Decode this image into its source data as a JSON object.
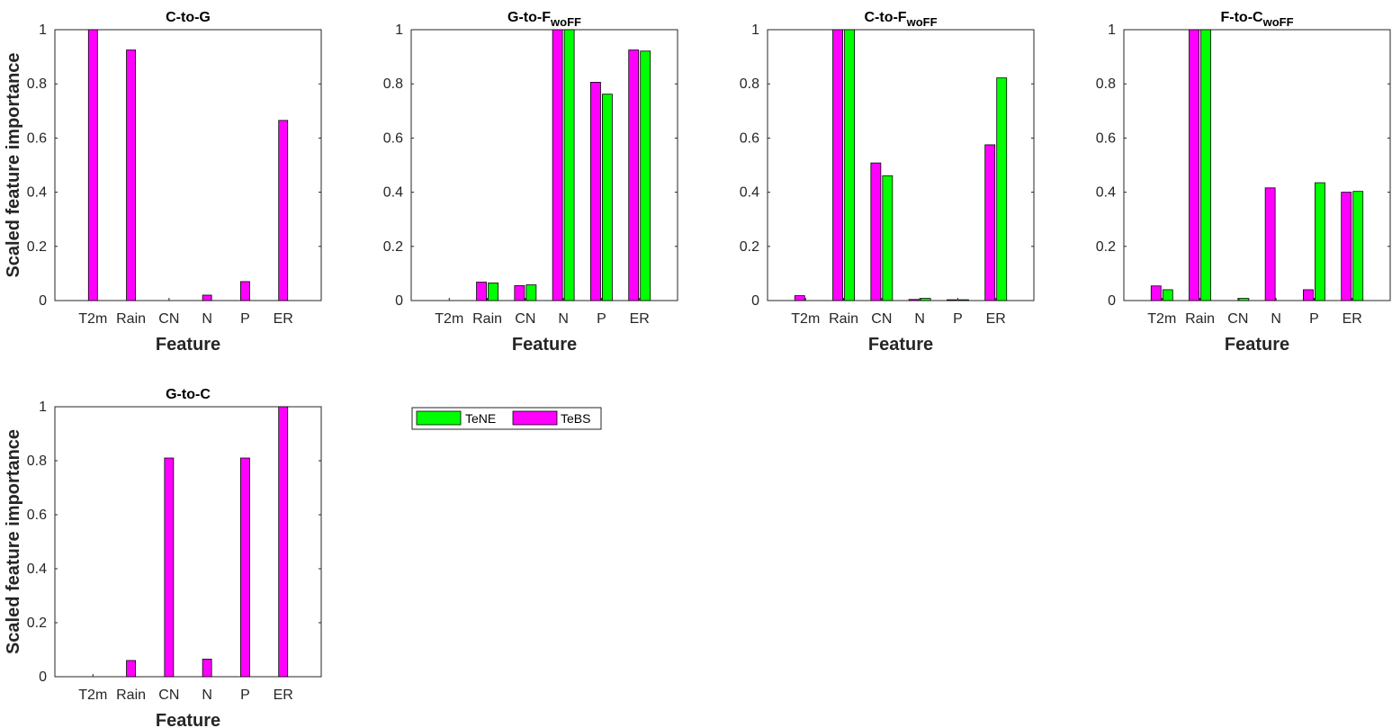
{
  "legend": [
    {
      "name": "TeNE",
      "color": "#00ff00"
    },
    {
      "name": "TeBS",
      "color": "#ff00ff"
    }
  ],
  "chart_data": [
    {
      "type": "bar",
      "title": "C-to-G",
      "title_sub": "",
      "xlabel": "Feature",
      "ylabel": "Scaled feature importance",
      "categories": [
        "T2m",
        "Rain",
        "CN",
        "N",
        "P",
        "ER"
      ],
      "yticks": [
        "0",
        "0.2",
        "0.4",
        "0.6",
        "0.8",
        "1"
      ],
      "ylim": [
        0,
        1
      ],
      "series": [
        {
          "name": "TeBS",
          "color": "#ff00ff",
          "values": [
            1.0,
            0.925,
            0.0,
            0.02,
            0.07,
            0.665
          ]
        }
      ]
    },
    {
      "type": "bar",
      "title": "G-to-F",
      "title_sub": "woFF",
      "xlabel": "Feature",
      "ylabel": "",
      "categories": [
        "T2m",
        "Rain",
        "CN",
        "N",
        "P",
        "ER"
      ],
      "yticks": [
        "0",
        "0.2",
        "0.4",
        "0.6",
        "0.8",
        "1"
      ],
      "ylim": [
        0,
        1
      ],
      "series": [
        {
          "name": "TeBS",
          "color": "#ff00ff",
          "values": [
            0.0,
            0.068,
            0.055,
            1.0,
            0.806,
            0.925
          ]
        },
        {
          "name": "TeNE",
          "color": "#00ff00",
          "values": [
            0.0,
            0.065,
            0.058,
            1.0,
            0.762,
            0.921
          ]
        }
      ]
    },
    {
      "type": "bar",
      "title": "C-to-F",
      "title_sub": "woFF",
      "xlabel": "Feature",
      "ylabel": "",
      "categories": [
        "T2m",
        "Rain",
        "CN",
        "N",
        "P",
        "ER"
      ],
      "yticks": [
        "0",
        "0.2",
        "0.4",
        "0.6",
        "0.8",
        "1"
      ],
      "ylim": [
        0,
        1
      ],
      "series": [
        {
          "name": "TeBS",
          "color": "#ff00ff",
          "values": [
            0.018,
            1.0,
            0.508,
            0.004,
            0.003,
            0.575
          ]
        },
        {
          "name": "TeNE",
          "color": "#00ff00",
          "values": [
            0.0,
            1.0,
            0.461,
            0.008,
            0.003,
            0.822
          ]
        }
      ]
    },
    {
      "type": "bar",
      "title": "F-to-C",
      "title_sub": "woFF",
      "xlabel": "Feature",
      "ylabel": "",
      "categories": [
        "T2m",
        "Rain",
        "CN",
        "N",
        "P",
        "ER"
      ],
      "yticks": [
        "0",
        "0.2",
        "0.4",
        "0.6",
        "0.8",
        "1"
      ],
      "ylim": [
        0,
        1
      ],
      "series": [
        {
          "name": "TeBS",
          "color": "#ff00ff",
          "values": [
            0.054,
            1.0,
            0.0,
            0.416,
            0.04,
            0.4
          ]
        },
        {
          "name": "TeNE",
          "color": "#00ff00",
          "values": [
            0.04,
            1.0,
            0.008,
            0.0,
            0.435,
            0.403
          ]
        }
      ]
    },
    {
      "type": "bar",
      "title": "G-to-C",
      "title_sub": "",
      "xlabel": "Feature",
      "ylabel": "Scaled feature importance",
      "categories": [
        "T2m",
        "Rain",
        "CN",
        "N",
        "P",
        "ER"
      ],
      "yticks": [
        "0",
        "0.2",
        "0.4",
        "0.6",
        "0.8",
        "1"
      ],
      "ylim": [
        0,
        1
      ],
      "series": [
        {
          "name": "TeBS",
          "color": "#ff00ff",
          "values": [
            0.0,
            0.06,
            0.81,
            0.065,
            0.81,
            1.0
          ]
        }
      ]
    }
  ]
}
